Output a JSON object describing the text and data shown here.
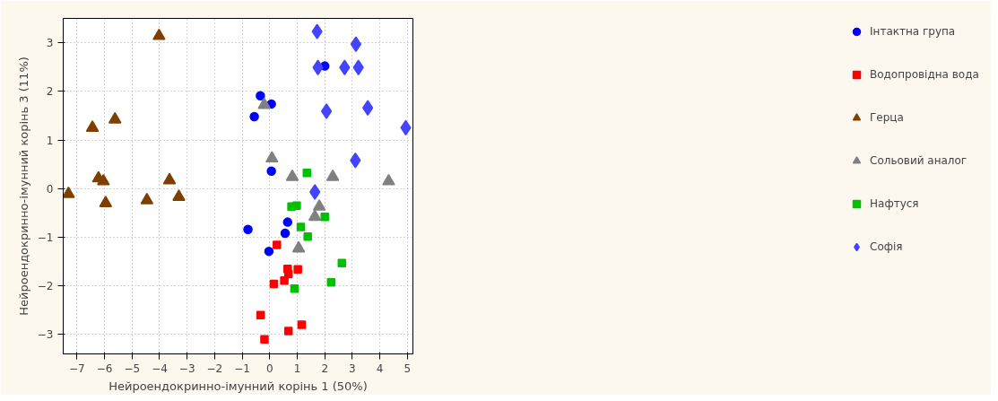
{
  "chart_data": {
    "type": "scatter",
    "xlabel": "Нейроендокринно-імунний корінь 1 (50%)",
    "ylabel": "Нейроендокринно-імунний корінь 3 (11%)",
    "xlim": [
      -7.5,
      5.2
    ],
    "ylim": [
      -3.4,
      3.5
    ],
    "xticks": [
      -7,
      -6,
      -5,
      -4,
      -3,
      -2,
      -1,
      0,
      1,
      2,
      3,
      4,
      5
    ],
    "yticks": [
      -3,
      -2,
      -1,
      0,
      1,
      2,
      3
    ],
    "grid": true,
    "legend": "right",
    "series": [
      {
        "name": "Інтактна група",
        "color": "#0000ff",
        "marker": "circle",
        "x": [
          -0.34,
          0.06,
          -0.56,
          0.0,
          0.06,
          2.0,
          0.65,
          -0.79,
          0.56,
          -0.03
        ],
        "values": [
          1.91,
          1.74,
          1.48,
          null,
          0.36,
          2.52,
          -0.69,
          -0.84,
          -0.92,
          -1.29
        ]
      },
      {
        "name": "Водопровідна вода",
        "color": "#ff0000",
        "marker": "square",
        "x": [
          0.26,
          0.65,
          0.68,
          1.02,
          0.15,
          0.53,
          -0.33,
          1.16,
          0.68,
          -0.19
        ],
        "values": [
          -1.16,
          -1.65,
          -1.76,
          -1.66,
          -1.96,
          -1.89,
          -2.6,
          -2.8,
          -2.93,
          -3.1
        ]
      },
      {
        "name": "Герца",
        "color": "#7f3f00",
        "marker": "triangle",
        "x": [
          -7.31,
          -6.44,
          -5.62,
          -6.22,
          -6.04,
          -5.96,
          -4.46,
          -4.02,
          -3.64,
          -3.3
        ],
        "values": [
          -0.11,
          1.25,
          1.42,
          0.21,
          0.15,
          -0.3,
          -0.24,
          3.14,
          0.17,
          -0.17
        ]
      },
      {
        "name": "Сольовий аналог",
        "color": "#808080",
        "marker": "triangle",
        "x": [
          -0.2,
          0.08,
          0.82,
          2.29,
          4.32,
          1.8,
          1.64,
          1.05
        ],
        "values": [
          1.72,
          0.62,
          0.24,
          0.24,
          0.15,
          -0.37,
          -0.58,
          -1.23
        ]
      },
      {
        "name": "Нафтуся",
        "color": "#00c000",
        "marker": "square",
        "x": [
          1.35,
          0.79,
          0.98,
          2.0,
          1.13,
          1.38,
          2.62,
          2.23,
          0.9
        ],
        "values": [
          0.32,
          -0.37,
          -0.35,
          -0.58,
          -0.79,
          -0.99,
          -1.53,
          -1.93,
          -2.06
        ]
      },
      {
        "name": "Софія",
        "color": "#4444ff",
        "marker": "diamond",
        "x": [
          1.72,
          3.13,
          1.75,
          2.72,
          3.22,
          2.06,
          3.56,
          4.94,
          3.11,
          1.64
        ],
        "values": [
          3.23,
          2.97,
          2.49,
          2.49,
          2.49,
          1.59,
          1.66,
          1.25,
          0.58,
          -0.07
        ]
      }
    ]
  }
}
